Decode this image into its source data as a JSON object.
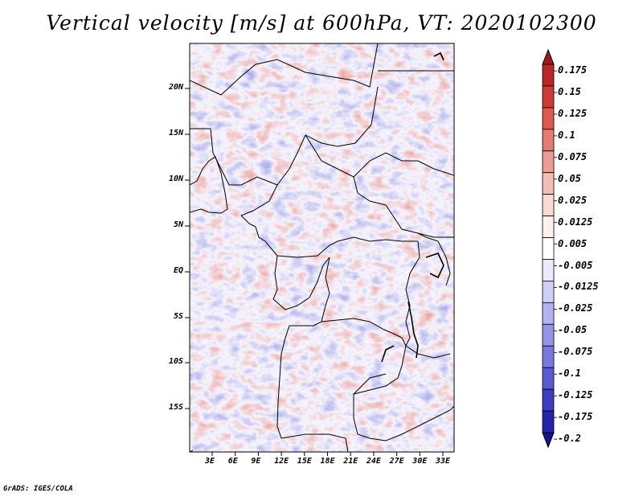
{
  "title": "Vertical velocity [m/s] at 600hPa, VT: 2020102300",
  "credit": "GrADS: IGES/COLA",
  "map": {
    "lat_labels": [
      "20N",
      "15N",
      "10N",
      "5N",
      "EQ",
      "5S",
      "10S",
      "15S"
    ],
    "lon_labels": [
      "3E",
      "6E",
      "9E",
      "12E",
      "15E",
      "18E",
      "21E",
      "24E",
      "27E",
      "30E",
      "33E"
    ],
    "field_colors": {
      "positive": "#d8453a",
      "negative": "#5a5ad2",
      "neutral": "#ffffff"
    }
  },
  "colorbar": {
    "labels": [
      "0.175",
      "0.15",
      "0.125",
      "0.1",
      "0.075",
      "0.05",
      "0.025",
      "0.0125",
      "0.005",
      "-0.005",
      "-0.0125",
      "-0.025",
      "-0.05",
      "-0.075",
      "-0.1",
      "-0.125",
      "-0.175",
      "-0.2"
    ],
    "colors": [
      "#a01818",
      "#b82626",
      "#cc3a36",
      "#dc5850",
      "#e47c72",
      "#ec9c94",
      "#f4beb6",
      "#fadad5",
      "#fff0ee",
      "#ffffff",
      "#eceafc",
      "#d0cff8",
      "#b3b2f0",
      "#9494e8",
      "#7878e0",
      "#5a5ad2",
      "#3c3cc0",
      "#2424a8",
      "#14148c"
    ]
  }
}
